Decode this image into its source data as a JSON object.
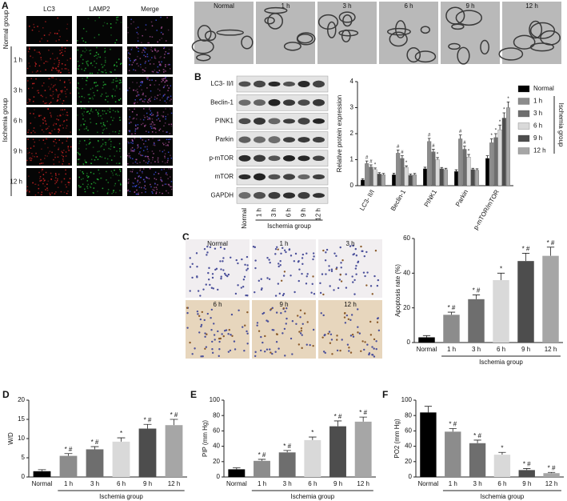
{
  "figure": {
    "panel_a": {
      "letter": "A",
      "columns": [
        "LC3",
        "LAMP2",
        "Merge"
      ],
      "rows": [
        "1 h",
        "3 h",
        "6 h",
        "9 h",
        "12 h"
      ],
      "normal_group": "Normal group",
      "ischemia_group": "Ischemia group"
    },
    "tem": {
      "labels": [
        "Normal",
        "1 h",
        "3 h",
        "6 h",
        "9 h",
        "12 h"
      ]
    },
    "blot": {
      "letter": "B",
      "proteins": [
        "LC3- II/I",
        "Beclin-1",
        "PINK1",
        "Parkin",
        "p-mTOR",
        "mTOR",
        "GAPDH"
      ],
      "lanes": [
        "Normal",
        "1 h",
        "3 h",
        "6 h",
        "9 h",
        "12 h"
      ],
      "group_label": "Ischemia group"
    },
    "panel_c": {
      "letter": "C",
      "labels": [
        "Normal",
        "1 h",
        "3 h",
        "6 h",
        "9 h",
        "12 h"
      ]
    }
  },
  "chart_data": [
    {
      "type": "grouped-bar",
      "ylabel": "Relative protein expression",
      "categories": [
        "LC3- II/I",
        "Beclin-1",
        "PINK1",
        "Parkin",
        "p-mTOR/mTOR"
      ],
      "ylim": [
        0,
        4
      ],
      "yticks": [
        0,
        1,
        2,
        3,
        4
      ],
      "group_label": "Ischemia group",
      "series": [
        {
          "name": "Normal",
          "color": "#000000",
          "values": [
            0.22,
            0.42,
            0.65,
            0.55,
            1.05
          ],
          "errors": [
            0.05,
            0.06,
            0.06,
            0.06,
            0.1
          ],
          "annotations": [
            null,
            null,
            null,
            null,
            null
          ]
        },
        {
          "name": "1 h",
          "color": "#8c8c8c",
          "values": [
            0.85,
            1.25,
            1.7,
            1.8,
            1.65
          ],
          "errors": [
            0.1,
            0.12,
            0.12,
            0.15,
            0.15
          ],
          "annotations": [
            "#",
            "#",
            "#",
            "#",
            "*"
          ]
        },
        {
          "name": "3 h",
          "color": "#6e6e6e",
          "values": [
            0.72,
            1.05,
            1.3,
            1.4,
            1.85
          ],
          "errors": [
            0.08,
            0.1,
            0.1,
            0.12,
            0.15
          ],
          "annotations": [
            "#",
            "#",
            "#",
            "#",
            "*"
          ]
        },
        {
          "name": "6 h",
          "color": "#d9d9d9",
          "values": [
            0.62,
            0.7,
            1.0,
            1.1,
            2.15
          ],
          "errors": [
            0.06,
            0.06,
            0.08,
            0.1,
            0.18
          ],
          "annotations": [
            "*",
            "*",
            "*",
            "*",
            "*"
          ]
        },
        {
          "name": "9 h",
          "color": "#4d4d4d",
          "values": [
            0.45,
            0.4,
            0.65,
            0.62,
            2.6
          ],
          "errors": [
            0.05,
            0.05,
            0.05,
            0.05,
            0.2
          ],
          "annotations": [
            null,
            null,
            null,
            null,
            "*"
          ]
        },
        {
          "name": "12 h",
          "color": "#a6a6a6",
          "values": [
            0.42,
            0.42,
            0.62,
            0.6,
            3.0
          ],
          "errors": [
            0.05,
            0.05,
            0.05,
            0.05,
            0.22
          ],
          "annotations": [
            null,
            null,
            null,
            null,
            "*"
          ]
        }
      ]
    },
    {
      "type": "bar",
      "ylabel": "Apoptosis rate (%)",
      "categories": [
        "Normal",
        "1 h",
        "3 h",
        "6 h",
        "9 h",
        "12 h"
      ],
      "values": [
        3,
        16,
        25,
        36,
        47,
        50
      ],
      "errors": [
        1,
        1.5,
        2.5,
        4,
        4.5,
        5
      ],
      "annotations": [
        null,
        "* #",
        "* #",
        "*",
        "* #",
        "* #"
      ],
      "colors": [
        "#000000",
        "#8c8c8c",
        "#6e6e6e",
        "#d9d9d9",
        "#4d4d4d",
        "#a6a6a6"
      ],
      "ylim": [
        0,
        60
      ],
      "yticks": [
        0,
        20,
        40,
        60
      ],
      "group_label": "Ischemia group"
    },
    {
      "type": "bar",
      "panel": "D",
      "ylabel": "W/D",
      "categories": [
        "Normal",
        "1 h",
        "3 h",
        "6 h",
        "9 h",
        "12 h"
      ],
      "values": [
        1.5,
        5.5,
        7.2,
        9.2,
        12.6,
        13.5
      ],
      "errors": [
        0.4,
        0.6,
        0.7,
        1,
        1.1,
        1.5
      ],
      "annotations": [
        null,
        "* #",
        "* #",
        "*",
        "* #",
        "* #"
      ],
      "colors": [
        "#000000",
        "#8c8c8c",
        "#6e6e6e",
        "#d9d9d9",
        "#4d4d4d",
        "#a6a6a6"
      ],
      "ylim": [
        0,
        20
      ],
      "yticks": [
        0,
        5,
        10,
        15,
        20
      ],
      "group_label": "Ischemia group"
    },
    {
      "type": "bar",
      "panel": "E",
      "ylabel": "PIP (mm Hg)",
      "categories": [
        "Normal",
        "1 h",
        "3 h",
        "6 h",
        "9 h",
        "12 h"
      ],
      "values": [
        10,
        21,
        32,
        48,
        66,
        72
      ],
      "errors": [
        2,
        2,
        2.5,
        4,
        7,
        6
      ],
      "annotations": [
        null,
        "* #",
        "* #",
        "*",
        "* #",
        "* #"
      ],
      "colors": [
        "#000000",
        "#8c8c8c",
        "#6e6e6e",
        "#d9d9d9",
        "#4d4d4d",
        "#a6a6a6"
      ],
      "ylim": [
        0,
        100
      ],
      "yticks": [
        0,
        20,
        40,
        60,
        80,
        100
      ],
      "group_label": "Ischemia group"
    },
    {
      "type": "bar",
      "panel": "F",
      "ylabel": "PO2 (mm Hg)",
      "categories": [
        "Normal",
        "1 h",
        "3 h",
        "6 h",
        "9 h",
        "12 h"
      ],
      "values": [
        84,
        59,
        44,
        29,
        9,
        5
      ],
      "errors": [
        8,
        4,
        4,
        3,
        2,
        1
      ],
      "annotations": [
        null,
        "* #",
        "* #",
        "*",
        "* #",
        "* #"
      ],
      "colors": [
        "#000000",
        "#8c8c8c",
        "#6e6e6e",
        "#d9d9d9",
        "#4d4d4d",
        "#a6a6a6"
      ],
      "ylim": [
        0,
        100
      ],
      "yticks": [
        0,
        20,
        40,
        60,
        80,
        100
      ],
      "group_label": "Ischemia group"
    }
  ]
}
